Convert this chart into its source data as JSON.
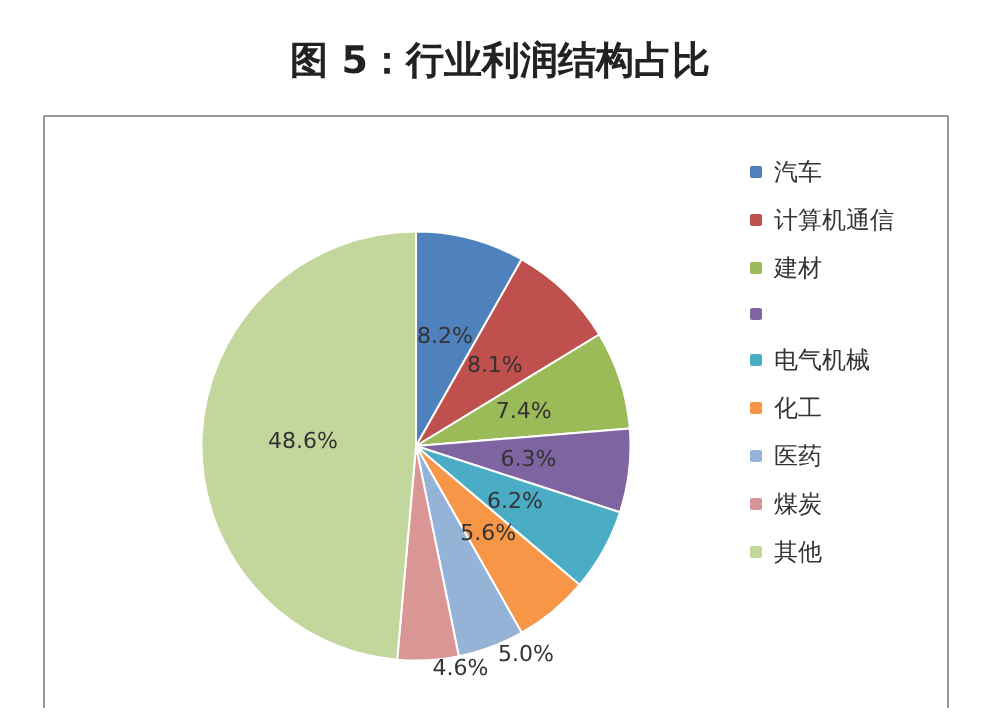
{
  "chart_data": {
    "type": "pie",
    "title": "图 5：行业利润结构占比",
    "categories": [
      "汽车",
      "计算机通信",
      "建材",
      null,
      "电气机械",
      "化工",
      "医药",
      "煤炭",
      "其他"
    ],
    "values": [
      8.2,
      8.1,
      7.4,
      6.3,
      6.2,
      5.6,
      5.0,
      4.6,
      48.6
    ],
    "value_labels": [
      "8.2%",
      "8.1%",
      "7.4%",
      "6.3%",
      "6.2%",
      "5.6%",
      "5.0%",
      "4.6%",
      "48.6%"
    ],
    "colors": [
      "#4f81bd",
      "#c0504d",
      "#9bbb59",
      "#8064a2",
      "#4bacc6",
      "#f79646",
      "#95b3d7",
      "#d99694",
      "#c3d69b"
    ],
    "legend": "right"
  }
}
